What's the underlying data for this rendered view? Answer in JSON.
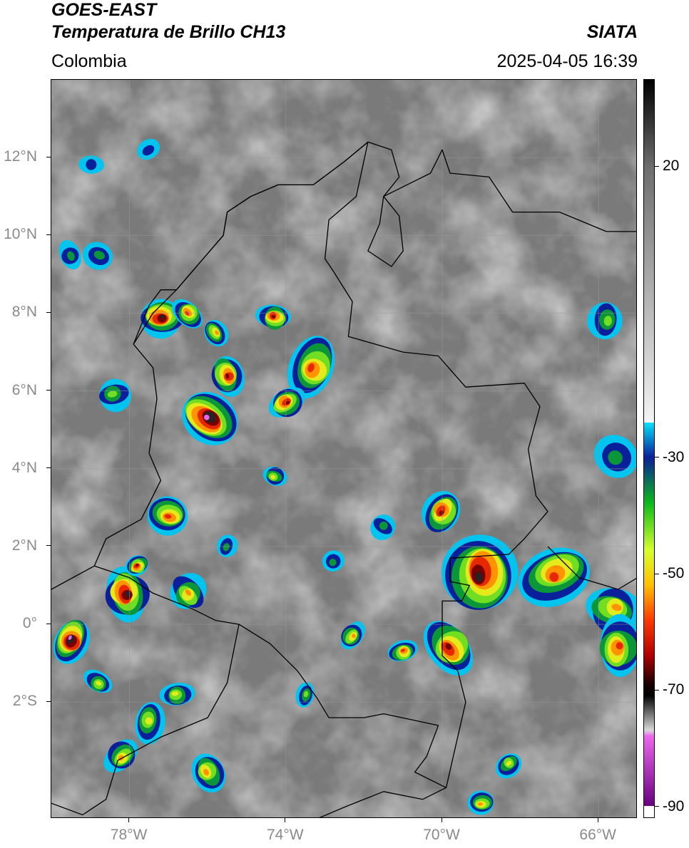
{
  "header": {
    "satellite": "GOES-EAST",
    "product": "Temperatura de Brillo CH13",
    "region": "Colombia",
    "source": "SIATA",
    "datetime": "2025-04-05 16:39"
  },
  "map": {
    "lon_range": [
      -80,
      -65
    ],
    "lat_range": [
      -5,
      14
    ],
    "lat_ticks": [
      {
        "value": 12,
        "label": "12°N"
      },
      {
        "value": 10,
        "label": "10°N"
      },
      {
        "value": 8,
        "label": "8°N"
      },
      {
        "value": 6,
        "label": "6°N"
      },
      {
        "value": 4,
        "label": "4°N"
      },
      {
        "value": 2,
        "label": "2°N"
      },
      {
        "value": 0,
        "label": "0°"
      },
      {
        "value": -2,
        "label": "2°S"
      }
    ],
    "lon_ticks": [
      {
        "value": -78,
        "label": "78°W"
      },
      {
        "value": -74,
        "label": "74°W"
      },
      {
        "value": -70,
        "label": "70°W"
      },
      {
        "value": -66,
        "label": "66°W"
      }
    ],
    "grid": true,
    "colors": {
      "background": "#7a7a7a",
      "border": "#000000",
      "grid": "#9a9a9a"
    }
  },
  "colorbar": {
    "range": [
      -92,
      35
    ],
    "ticks": [
      {
        "value": 20,
        "label": "20"
      },
      {
        "value": -30,
        "label": "-30"
      },
      {
        "value": -50,
        "label": "-50"
      },
      {
        "value": -70,
        "label": "-70"
      },
      {
        "value": -90,
        "label": "-90"
      }
    ],
    "stops": [
      {
        "value": 35,
        "color": "#000000"
      },
      {
        "value": 20,
        "color": "#6e6e6e"
      },
      {
        "value": -24,
        "color": "#f4f4f4"
      },
      {
        "value": -24.01,
        "color": "#00e5ff"
      },
      {
        "value": -30,
        "color": "#0a1f9a"
      },
      {
        "value": -38,
        "color": "#0bbd1a"
      },
      {
        "value": -46,
        "color": "#d8ff2a"
      },
      {
        "value": -52,
        "color": "#ffc000"
      },
      {
        "value": -58,
        "color": "#ff3a00"
      },
      {
        "value": -64,
        "color": "#b40000"
      },
      {
        "value": -69,
        "color": "#1a0000"
      },
      {
        "value": -71,
        "color": "#000000"
      },
      {
        "value": -77,
        "color": "#d8d8d8"
      },
      {
        "value": -78,
        "color": "#ee66ee"
      },
      {
        "value": -90,
        "color": "#6a0080"
      },
      {
        "value": -90.01,
        "color": "#ffffff"
      }
    ]
  },
  "storms": [
    {
      "lon": -77.2,
      "lat": 7.9,
      "r": 0.55,
      "core": -76
    },
    {
      "lon": -76.0,
      "lat": 5.3,
      "r": 0.75,
      "core": -80
    },
    {
      "lon": -75.5,
      "lat": 6.4,
      "r": 0.5,
      "core": -66
    },
    {
      "lon": -73.3,
      "lat": 6.6,
      "r": 0.75,
      "core": -64
    },
    {
      "lon": -74.0,
      "lat": 5.7,
      "r": 0.45,
      "core": -70
    },
    {
      "lon": -74.3,
      "lat": 7.9,
      "r": 0.4,
      "core": -68
    },
    {
      "lon": -76.5,
      "lat": 8.0,
      "r": 0.4,
      "core": -60
    },
    {
      "lon": -78.1,
      "lat": 0.8,
      "r": 0.65,
      "core": -76
    },
    {
      "lon": -79.5,
      "lat": -0.4,
      "r": 0.55,
      "core": -80
    },
    {
      "lon": -77.8,
      "lat": 1.5,
      "r": 0.3,
      "core": -70
    },
    {
      "lon": -77.0,
      "lat": 2.8,
      "r": 0.55,
      "core": -62
    },
    {
      "lon": -76.5,
      "lat": 0.8,
      "r": 0.5,
      "core": -58
    },
    {
      "lon": -69.0,
      "lat": 1.3,
      "r": 1.05,
      "core": -74
    },
    {
      "lon": -70.0,
      "lat": 2.9,
      "r": 0.55,
      "core": -70
    },
    {
      "lon": -67.1,
      "lat": 1.3,
      "r": 0.9,
      "core": -62
    },
    {
      "lon": -65.6,
      "lat": 0.4,
      "r": 0.7,
      "core": -58
    },
    {
      "lon": -69.8,
      "lat": -0.6,
      "r": 0.7,
      "core": -68
    },
    {
      "lon": -65.5,
      "lat": -0.6,
      "r": 0.7,
      "core": -60
    },
    {
      "lon": -72.3,
      "lat": -0.3,
      "r": 0.35,
      "core": -58
    },
    {
      "lon": -71.0,
      "lat": -0.7,
      "r": 0.35,
      "core": -62
    },
    {
      "lon": -74.3,
      "lat": 3.8,
      "r": 0.3,
      "core": -48
    },
    {
      "lon": -75.8,
      "lat": 7.5,
      "r": 0.35,
      "core": -56
    },
    {
      "lon": -65.8,
      "lat": 7.8,
      "r": 0.5,
      "core": -42
    },
    {
      "lon": -65.6,
      "lat": 4.3,
      "r": 0.6,
      "core": -36
    },
    {
      "lon": -78.4,
      "lat": 5.9,
      "r": 0.45,
      "core": -44
    },
    {
      "lon": -78.8,
      "lat": 9.5,
      "r": 0.4,
      "core": -38
    },
    {
      "lon": -76.0,
      "lat": -3.8,
      "r": 0.5,
      "core": -54
    },
    {
      "lon": -77.5,
      "lat": -2.5,
      "r": 0.5,
      "core": -52
    },
    {
      "lon": -78.2,
      "lat": -3.4,
      "r": 0.45,
      "core": -56
    },
    {
      "lon": -76.8,
      "lat": -1.8,
      "r": 0.4,
      "core": -50
    },
    {
      "lon": -78.8,
      "lat": -1.5,
      "r": 0.35,
      "core": -48
    },
    {
      "lon": -79.5,
      "lat": 9.5,
      "r": 0.35,
      "core": -40
    },
    {
      "lon": -73.5,
      "lat": -1.8,
      "r": 0.3,
      "core": -44
    },
    {
      "lon": -68.3,
      "lat": -3.6,
      "r": 0.35,
      "core": -50
    },
    {
      "lon": -69.0,
      "lat": -4.6,
      "r": 0.35,
      "core": -56
    },
    {
      "lon": -71.5,
      "lat": 2.5,
      "r": 0.35,
      "core": -40
    },
    {
      "lon": -72.8,
      "lat": 1.6,
      "r": 0.3,
      "core": -38
    },
    {
      "lon": -75.5,
      "lat": 2.0,
      "r": 0.3,
      "core": -40
    },
    {
      "lon": -77.5,
      "lat": 12.2,
      "r": 0.3,
      "core": -34
    },
    {
      "lon": -79.0,
      "lat": 11.8,
      "r": 0.3,
      "core": -34
    }
  ],
  "borders": {
    "coast": [
      [
        -77.9,
        7.2
      ],
      [
        -77.5,
        8.2
      ],
      [
        -77.2,
        8.6
      ],
      [
        -76.8,
        8.6
      ],
      [
        -76.2,
        9.3
      ],
      [
        -75.6,
        10.0
      ],
      [
        -75.5,
        10.6
      ],
      [
        -74.9,
        11.0
      ],
      [
        -74.2,
        11.3
      ],
      [
        -73.3,
        11.3
      ],
      [
        -72.5,
        11.9
      ],
      [
        -71.9,
        12.4
      ],
      [
        -71.3,
        12.2
      ],
      [
        -71.1,
        11.5
      ],
      [
        -71.5,
        11.0
      ],
      [
        -71.6,
        10.3
      ],
      [
        -71.9,
        9.6
      ],
      [
        -71.3,
        9.2
      ],
      [
        -71.0,
        9.6
      ],
      [
        -71.1,
        10.5
      ],
      [
        -71.5,
        11.0
      ],
      [
        -70.3,
        11.6
      ],
      [
        -70.0,
        12.2
      ],
      [
        -69.8,
        11.6
      ],
      [
        -68.8,
        11.5
      ],
      [
        -68.2,
        10.6
      ],
      [
        -67.0,
        10.6
      ],
      [
        -65.8,
        10.1
      ],
      [
        -65.0,
        10.1
      ]
    ],
    "pacific": [
      [
        -77.9,
        7.2
      ],
      [
        -77.4,
        6.6
      ],
      [
        -77.3,
        5.8
      ],
      [
        -77.5,
        4.4
      ],
      [
        -77.2,
        3.7
      ],
      [
        -77.7,
        2.7
      ],
      [
        -78.6,
        2.2
      ],
      [
        -78.9,
        1.5
      ],
      [
        -80.0,
        0.9
      ]
    ],
    "colombia": [
      [
        -77.9,
        7.2
      ],
      [
        -77.4,
        8.0
      ],
      [
        -76.8,
        8.6
      ],
      [
        -76.2,
        9.3
      ],
      [
        -75.6,
        10.0
      ],
      [
        -75.5,
        10.6
      ],
      [
        -74.9,
        11.0
      ],
      [
        -74.2,
        11.3
      ],
      [
        -73.3,
        11.3
      ],
      [
        -72.5,
        11.9
      ],
      [
        -71.9,
        12.4
      ],
      [
        -72.2,
        11.0
      ],
      [
        -72.9,
        10.4
      ],
      [
        -73.0,
        9.4
      ],
      [
        -72.8,
        9.1
      ],
      [
        -72.3,
        8.3
      ],
      [
        -72.4,
        7.4
      ],
      [
        -71.0,
        7.0
      ],
      [
        -70.1,
        6.9
      ],
      [
        -69.4,
        6.1
      ],
      [
        -67.9,
        6.2
      ],
      [
        -67.5,
        5.6
      ],
      [
        -67.8,
        4.5
      ],
      [
        -67.6,
        3.3
      ],
      [
        -67.3,
        2.9
      ],
      [
        -67.9,
        2.2
      ],
      [
        -68.3,
        1.8
      ],
      [
        -69.8,
        1.7
      ],
      [
        -69.8,
        1.1
      ],
      [
        -69.3,
        1.0
      ],
      [
        -69.5,
        0.6
      ],
      [
        -70.0,
        0.6
      ],
      [
        -70.0,
        -0.8
      ],
      [
        -69.6,
        -1.2
      ],
      [
        -69.4,
        -2.0
      ],
      [
        -69.9,
        -4.2
      ],
      [
        -70.7,
        -3.8
      ],
      [
        -70.4,
        -3.4
      ],
      [
        -70.1,
        -2.6
      ],
      [
        -71.5,
        -2.3
      ],
      [
        -72.0,
        -2.4
      ],
      [
        -72.9,
        -2.4
      ],
      [
        -73.2,
        -1.9
      ],
      [
        -73.7,
        -1.2
      ],
      [
        -74.4,
        -0.5
      ],
      [
        -75.2,
        -0.0
      ],
      [
        -75.8,
        0.1
      ],
      [
        -76.4,
        0.4
      ],
      [
        -77.4,
        0.8
      ],
      [
        -78.0,
        1.2
      ],
      [
        -78.9,
        1.5
      ]
    ],
    "ecuador_peru": [
      [
        -80.0,
        -4.6
      ],
      [
        -79.2,
        -4.9
      ],
      [
        -78.6,
        -4.5
      ],
      [
        -78.3,
        -3.5
      ],
      [
        -77.2,
        -2.9
      ],
      [
        -76.0,
        -2.4
      ],
      [
        -75.5,
        -1.5
      ],
      [
        -75.2,
        -0.0
      ]
    ],
    "peru_brazil": [
      [
        -69.9,
        -4.2
      ],
      [
        -70.5,
        -4.5
      ],
      [
        -71.5,
        -4.3
      ],
      [
        -72.5,
        -4.7
      ],
      [
        -73.2,
        -5.0
      ]
    ],
    "venezuela_brazil": [
      [
        -67.3,
        2.0
      ],
      [
        -66.5,
        1.2
      ],
      [
        -65.5,
        0.9
      ],
      [
        -65.0,
        1.2
      ]
    ],
    "venezuela_guyana": [
      [
        -65.0,
        4.2
      ],
      [
        -64.5,
        3.8
      ],
      [
        -64.0,
        4.3
      ]
    ]
  }
}
